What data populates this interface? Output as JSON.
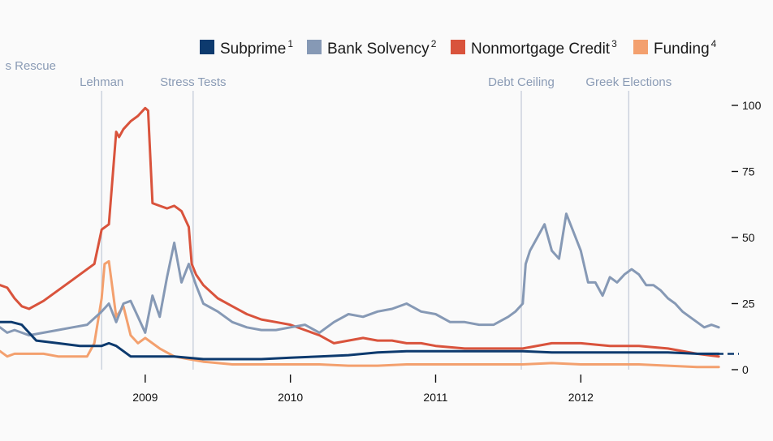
{
  "chart_data": {
    "type": "line",
    "xlim": [
      2008.0,
      2012.96
    ],
    "ylim": [
      0,
      100
    ],
    "yticks": [
      0,
      25,
      50,
      75,
      100
    ],
    "yticks_labels": [
      "0",
      "25",
      "50",
      "75",
      "100"
    ],
    "xticks": [
      2009,
      2010,
      2011,
      2012
    ],
    "xticks_labels": [
      "2009",
      "2010",
      "2011",
      "2012"
    ],
    "reference_line_y": 6,
    "legend": {
      "placement": "top-right"
    },
    "events": [
      {
        "label": "s Rescue",
        "x": 2007.9
      },
      {
        "label": "Lehman",
        "x": 2008.7
      },
      {
        "label": "Stress Tests",
        "x": 2009.33
      },
      {
        "label": "Debt Ceiling",
        "x": 2011.59
      },
      {
        "label": "Greek Elections",
        "x": 2012.33
      }
    ],
    "series": [
      {
        "name": "Subprime",
        "sup": "1",
        "color": "#0d3a6e",
        "x": [
          2008.0,
          2008.08,
          2008.15,
          2008.25,
          2008.4,
          2008.55,
          2008.7,
          2008.75,
          2008.8,
          2008.85,
          2008.9,
          2009.0,
          2009.2,
          2009.4,
          2009.6,
          2009.8,
          2010.0,
          2010.2,
          2010.4,
          2010.6,
          2010.8,
          2011.0,
          2011.2,
          2011.4,
          2011.6,
          2011.8,
          2012.0,
          2012.2,
          2012.4,
          2012.6,
          2012.8,
          2012.95
        ],
        "y": [
          18,
          18,
          17,
          11,
          10,
          9,
          9,
          10,
          9,
          7,
          5,
          5,
          5,
          4,
          4,
          4,
          4.5,
          5,
          5.5,
          6.5,
          7,
          7,
          7,
          7,
          7,
          6.5,
          6.5,
          6.5,
          6.5,
          6.5,
          6,
          6
        ]
      },
      {
        "name": "Bank Solvency",
        "sup": "2",
        "color": "#8699b5",
        "x": [
          2008.0,
          2008.05,
          2008.1,
          2008.2,
          2008.3,
          2008.4,
          2008.5,
          2008.6,
          2008.7,
          2008.75,
          2008.8,
          2008.85,
          2008.9,
          2008.95,
          2009.0,
          2009.05,
          2009.1,
          2009.15,
          2009.2,
          2009.25,
          2009.3,
          2009.35,
          2009.4,
          2009.5,
          2009.6,
          2009.7,
          2009.8,
          2009.9,
          2010.0,
          2010.1,
          2010.2,
          2010.3,
          2010.4,
          2010.5,
          2010.6,
          2010.7,
          2010.8,
          2010.9,
          2011.0,
          2011.1,
          2011.2,
          2011.3,
          2011.4,
          2011.5,
          2011.55,
          2011.6,
          2011.62,
          2011.65,
          2011.7,
          2011.75,
          2011.8,
          2011.85,
          2011.9,
          2011.95,
          2012.0,
          2012.05,
          2012.1,
          2012.15,
          2012.2,
          2012.25,
          2012.3,
          2012.35,
          2012.4,
          2012.45,
          2012.5,
          2012.55,
          2012.6,
          2012.65,
          2012.7,
          2012.75,
          2012.8,
          2012.85,
          2012.9,
          2012.95
        ],
        "y": [
          16,
          14,
          15,
          13,
          14,
          15,
          16,
          17,
          22,
          25,
          18,
          25,
          26,
          20,
          14,
          28,
          20,
          35,
          48,
          33,
          40,
          32,
          25,
          22,
          18,
          16,
          15,
          15,
          16,
          17,
          14,
          18,
          21,
          20,
          22,
          23,
          25,
          22,
          21,
          18,
          18,
          17,
          17,
          20,
          22,
          25,
          40,
          45,
          50,
          55,
          45,
          42,
          59,
          52,
          45,
          33,
          33,
          28,
          35,
          33,
          36,
          38,
          36,
          32,
          32,
          30,
          27,
          25,
          22,
          20,
          18,
          16,
          17,
          16
        ]
      },
      {
        "name": "Nonmortgage Credit",
        "sup": "3",
        "color": "#d9533c",
        "x": [
          2008.0,
          2008.05,
          2008.1,
          2008.15,
          2008.2,
          2008.3,
          2008.4,
          2008.5,
          2008.6,
          2008.65,
          2008.7,
          2008.75,
          2008.8,
          2008.82,
          2008.85,
          2008.9,
          2008.95,
          2009.0,
          2009.02,
          2009.05,
          2009.1,
          2009.15,
          2009.2,
          2009.25,
          2009.3,
          2009.32,
          2009.35,
          2009.4,
          2009.5,
          2009.6,
          2009.7,
          2009.8,
          2009.9,
          2010.0,
          2010.1,
          2010.2,
          2010.3,
          2010.4,
          2010.5,
          2010.6,
          2010.7,
          2010.8,
          2010.9,
          2011.0,
          2011.2,
          2011.4,
          2011.6,
          2011.8,
          2012.0,
          2012.2,
          2012.4,
          2012.6,
          2012.8,
          2012.95
        ],
        "y": [
          32,
          31,
          27,
          24,
          23,
          26,
          30,
          34,
          38,
          40,
          53,
          55,
          90,
          88,
          91,
          94,
          96,
          99,
          98,
          63,
          62,
          61,
          62,
          60,
          54,
          40,
          36,
          32,
          27,
          24,
          21,
          19,
          18,
          17,
          15,
          13,
          10,
          11,
          12,
          11,
          11,
          10,
          10,
          9,
          8,
          8,
          8,
          10,
          10,
          9,
          9,
          8,
          6,
          5
        ]
      },
      {
        "name": "Funding",
        "sup": "4",
        "color": "#f3a06e",
        "x": [
          2008.0,
          2008.05,
          2008.1,
          2008.2,
          2008.3,
          2008.4,
          2008.5,
          2008.6,
          2008.65,
          2008.7,
          2008.72,
          2008.75,
          2008.8,
          2008.85,
          2008.9,
          2008.95,
          2009.0,
          2009.1,
          2009.2,
          2009.3,
          2009.4,
          2009.6,
          2009.8,
          2010.0,
          2010.2,
          2010.4,
          2010.6,
          2010.8,
          2011.0,
          2011.2,
          2011.4,
          2011.6,
          2011.8,
          2012.0,
          2012.2,
          2012.4,
          2012.6,
          2012.8,
          2012.95
        ],
        "y": [
          7,
          5,
          6,
          6,
          6,
          5,
          5,
          5,
          10,
          27,
          40,
          41,
          20,
          24,
          13,
          10,
          12,
          8,
          5,
          4,
          3,
          2,
          2,
          2,
          2,
          1.5,
          1.5,
          2,
          2,
          2,
          2,
          2,
          2.5,
          2,
          2,
          2,
          1.5,
          1,
          1
        ]
      }
    ]
  }
}
